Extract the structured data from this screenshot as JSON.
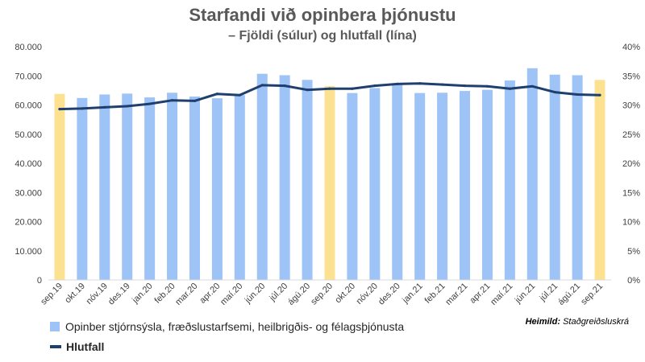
{
  "chart_data": {
    "type": "bar",
    "title": "Starfandi við opinbera þjónustu",
    "subtitle": "– Fjöldi (súlur) og hlutfall (lína)",
    "categories": [
      "sep.19",
      "okt.19",
      "nóv.19",
      "des.19",
      "jan.20",
      "feb.20",
      "mar.20",
      "apr.20",
      "maí.20",
      "jún.20",
      "júl.20",
      "ágú.20",
      "sep.20",
      "okt.20",
      "nóv.20",
      "des.20",
      "jan.21",
      "feb.21",
      "mar.21",
      "apr.21",
      "maí.21",
      "jún.21",
      "júl.21",
      "ágú.21",
      "sep.21"
    ],
    "series": [
      {
        "name": "Opinber stjórnsýsla, fræðslustarfsemi, heilbrigðis- og félagsþjónusta",
        "type": "bar",
        "axis": "left",
        "color": "#9dc3f7",
        "highlight_color": "#fce290",
        "highlight_categories": [
          "sep.19",
          "sep.20",
          "sep.21"
        ],
        "values": [
          63800,
          62400,
          63600,
          63900,
          62600,
          64200,
          62900,
          62300,
          63400,
          70700,
          70200,
          68600,
          66500,
          64100,
          65800,
          66900,
          64100,
          64200,
          64800,
          65200,
          68400,
          72600,
          70400,
          70200,
          68600
        ]
      },
      {
        "name": "Hlutfall",
        "type": "line",
        "axis": "right",
        "color": "#1f3f6e",
        "values": [
          0.293,
          0.294,
          0.296,
          0.298,
          0.302,
          0.308,
          0.307,
          0.319,
          0.317,
          0.334,
          0.333,
          0.326,
          0.328,
          0.328,
          0.333,
          0.336,
          0.337,
          0.335,
          0.333,
          0.332,
          0.328,
          0.332,
          0.322,
          0.318,
          0.317
        ]
      }
    ],
    "y_left": {
      "min": 0,
      "max": 80000,
      "ticks": [
        "0",
        "10.000",
        "20.000",
        "30.000",
        "40.000",
        "50.000",
        "60.000",
        "70.000",
        "80.000"
      ]
    },
    "y_right": {
      "min": 0,
      "max": 0.4,
      "ticks": [
        "0%",
        "5%",
        "10%",
        "15%",
        "20%",
        "25%",
        "30%",
        "35%",
        "40%"
      ]
    },
    "grid": false,
    "legend_placement": "bottom-left",
    "source_label": "Heimild:",
    "source_text": "Staðgreiðsluskrá"
  }
}
